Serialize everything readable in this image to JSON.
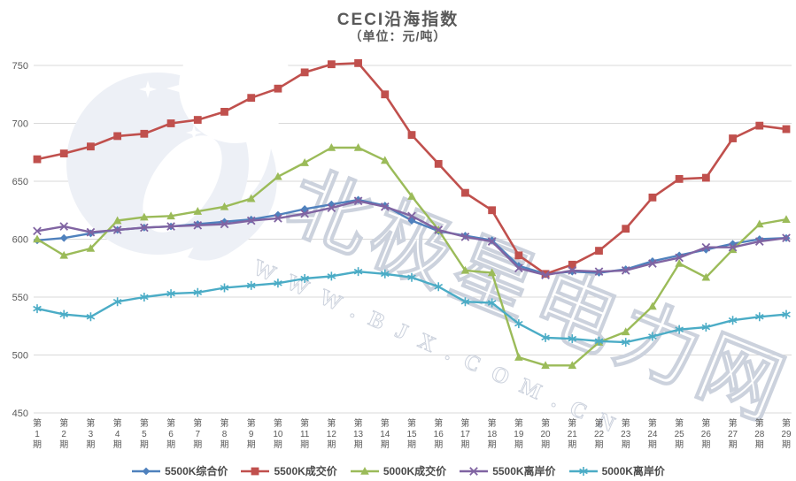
{
  "chart_data": {
    "type": "line",
    "title": "CECI沿海指数",
    "subtitle": "（单位：元/吨）",
    "unit": "元/吨",
    "ylim": [
      450,
      750
    ],
    "yticks": [
      450,
      500,
      550,
      600,
      650,
      700,
      750
    ],
    "grid": "horizontal",
    "legend_position": "bottom",
    "categories": [
      "第1期",
      "第2期",
      "第3期",
      "第4期",
      "第5期",
      "第6期",
      "第7期",
      "第8期",
      "第9期",
      "第10期",
      "第11期",
      "第12期",
      "第13期",
      "第14期",
      "第15期",
      "第16期",
      "第17期",
      "第18期",
      "第19期",
      "第20期",
      "第21期",
      "第22期",
      "第23期",
      "第24期",
      "第25期",
      "第26期",
      "第27期",
      "第28期",
      "第29期"
    ],
    "series": [
      {
        "name": "5500K综合价",
        "color": "#4F81BD",
        "marker": "diamond",
        "values": [
          599,
          601,
          605,
          608,
          610,
          611,
          613,
          615,
          617,
          621,
          626,
          630,
          634,
          629,
          616,
          607,
          603,
          599,
          577,
          570,
          572,
          571,
          574,
          581,
          586,
          591,
          596,
          600,
          601
        ]
      },
      {
        "name": "5500K成交价",
        "color": "#C0504D",
        "marker": "square",
        "values": [
          669,
          674,
          680,
          689,
          691,
          700,
          703,
          710,
          722,
          730,
          744,
          751,
          752,
          725,
          690,
          665,
          640,
          625,
          586,
          570,
          578,
          590,
          609,
          636,
          652,
          653,
          687,
          698,
          695
        ]
      },
      {
        "name": "5000K成交价",
        "color": "#9BBB59",
        "marker": "triangle",
        "values": [
          600,
          586,
          592,
          616,
          619,
          620,
          624,
          628,
          635,
          654,
          666,
          679,
          679,
          668,
          637,
          608,
          573,
          571,
          498,
          491,
          491,
          511,
          520,
          542,
          579,
          567,
          591,
          613,
          617
        ]
      },
      {
        "name": "5500K离岸价",
        "color": "#8064A2",
        "marker": "x",
        "values": [
          607,
          611,
          606,
          608,
          610,
          611,
          612,
          613,
          616,
          618,
          622,
          627,
          633,
          628,
          620,
          608,
          602,
          598,
          575,
          569,
          573,
          572,
          573,
          579,
          584,
          593,
          593,
          598,
          601
        ]
      },
      {
        "name": "5000K离岸价",
        "color": "#4BACC6",
        "marker": "asterisk",
        "values": [
          540,
          535,
          533,
          546,
          550,
          553,
          554,
          558,
          560,
          562,
          566,
          568,
          572,
          570,
          567,
          559,
          546,
          545,
          527,
          515,
          514,
          512,
          511,
          516,
          522,
          524,
          530,
          533,
          535
        ]
      }
    ],
    "watermark": {
      "text_large": "北极星电力网",
      "text_small": "WWW.BJX.COM.CN",
      "logo_icon": "polaris-bird-logo"
    }
  },
  "theme": {
    "grid_color": "#d9d9d9",
    "axis_text_color": "#595959",
    "title_color": "#595959",
    "watermark_color": "#ccd2dd",
    "logo_color": "#edf0f6"
  }
}
